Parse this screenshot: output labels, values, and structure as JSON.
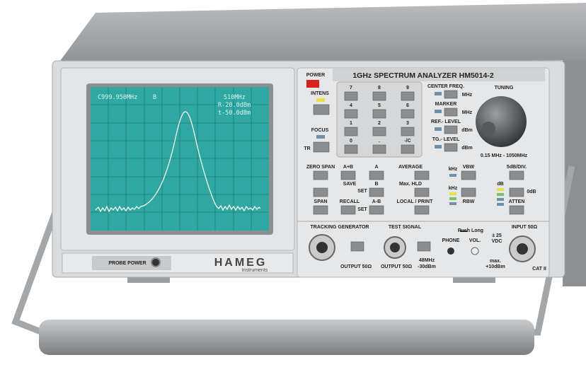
{
  "screen": {
    "center": "C999.950MHz",
    "mode": "B",
    "span": "S10MHz",
    "ref_level": "R-20.0dBm",
    "tg_level": "t-50.0dBm"
  },
  "power": "POWER",
  "title": "1GHz SPECTRUM ANALYZER HM5014-2",
  "left_controls": {
    "intens": "INTENS",
    "focus": "FOCUS",
    "tr": "TR"
  },
  "keypad": [
    "7",
    "8",
    "9",
    "4",
    "5",
    "6",
    "1",
    "2",
    "3",
    "0",
    ".",
    "-/C"
  ],
  "parameters": [
    {
      "label": "CENTER FREQ.",
      "unit": "MHz"
    },
    {
      "label": "MARKER",
      "unit": "MHz"
    },
    {
      "label": "REF.- LEVEL",
      "unit": "dBm"
    },
    {
      "label": "TG.- LEVEL",
      "unit": "dBm"
    }
  ],
  "tuning": {
    "label": "TUNING",
    "range": "0.15 MHz - 1050MHz"
  },
  "function_keys": {
    "zero_span": "ZERO SPAN",
    "a_plus_b": "A+B",
    "a": "A",
    "average": "AVERAGE",
    "save": "SAVE",
    "b": "B",
    "max_hld": "Max. HLD",
    "set_1": "SET",
    "span": "SPAN",
    "recall": "RECALL",
    "a_minus_b": "A-B",
    "local_print": "LOCAL / PRINT",
    "set_2": "SET"
  },
  "filters": {
    "vbw_unit": "kHz",
    "vbw": "VBW",
    "rbw_unit": "kHz",
    "rbw": "RBW"
  },
  "attenuator": {
    "scale": "5dB/DIV.",
    "unit": "dB",
    "zero": "0dB",
    "label": "ATTEN"
  },
  "tracking_generator": {
    "label": "TRACKING GENERATOR",
    "output": "OUTPUT 50Ω"
  },
  "test_signal": {
    "label": "TEST SIGNAL",
    "output": "OUTPUT 50Ω",
    "freq": "48MHz",
    "level": "-30dBm"
  },
  "audio": {
    "push_long": "Push Long",
    "phone": "PHONE",
    "vol": "VOL."
  },
  "input": {
    "label": "INPUT 50Ω",
    "dc_max": "± 25",
    "dc_unit": "VDC",
    "max": "max.",
    "max_level": "+10dBm",
    "cat": "CAT II"
  },
  "probe_power": "PROBE POWER",
  "brand": {
    "name": "HAMEG",
    "sub": "Instruments"
  }
}
